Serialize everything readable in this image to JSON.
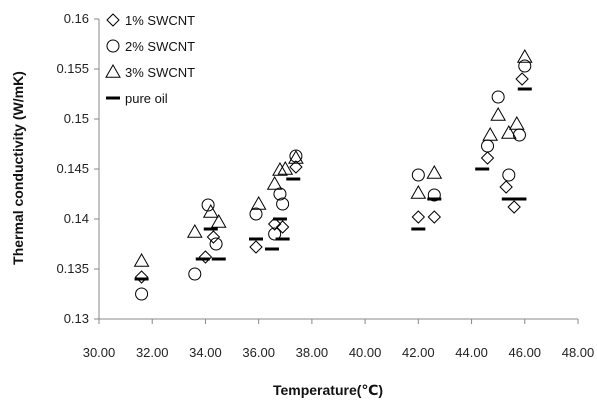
{
  "chart_data": {
    "type": "scatter",
    "title": "",
    "xlabel": "Temperature(℃)",
    "ylabel": "Thermal conductivity  (W/mK)",
    "xlim": [
      30,
      48
    ],
    "ylim": [
      0.13,
      0.16
    ],
    "x_ticks": [
      30,
      32,
      34,
      36,
      38,
      40,
      42,
      44,
      46,
      48
    ],
    "x_tick_labels": [
      "30.00",
      "32.00",
      "34.00",
      "36.00",
      "38.00",
      "40.00",
      "42.00",
      "44.00",
      "46.00",
      "48.00"
    ],
    "y_ticks": [
      0.13,
      0.135,
      0.14,
      0.145,
      0.15,
      0.155,
      0.16
    ],
    "y_tick_labels": [
      "0.13",
      "0.135",
      "0.14",
      "0.145",
      "0.15",
      "0.155",
      "0.16"
    ],
    "grid": false,
    "legend_position": "top-left",
    "series": [
      {
        "name": "1% SWCNT",
        "marker": "diamond",
        "color": "#000000",
        "points": [
          [
            31.6,
            0.1342
          ],
          [
            34.0,
            0.1362
          ],
          [
            34.3,
            0.1382
          ],
          [
            35.9,
            0.1372
          ],
          [
            36.6,
            0.1395
          ],
          [
            36.9,
            0.1392
          ],
          [
            37.4,
            0.1452
          ],
          [
            42.0,
            0.1402
          ],
          [
            42.6,
            0.1402
          ],
          [
            44.6,
            0.1461
          ],
          [
            45.3,
            0.1432
          ],
          [
            45.6,
            0.1412
          ],
          [
            45.9,
            0.154
          ]
        ]
      },
      {
        "name": "2% SWCNT",
        "marker": "circle",
        "color": "#000000",
        "points": [
          [
            31.6,
            0.1325
          ],
          [
            33.6,
            0.1345
          ],
          [
            34.1,
            0.1414
          ],
          [
            34.4,
            0.1375
          ],
          [
            35.9,
            0.1405
          ],
          [
            36.6,
            0.1385
          ],
          [
            36.8,
            0.1425
          ],
          [
            36.9,
            0.1415
          ],
          [
            37.4,
            0.1463
          ],
          [
            42.0,
            0.1444
          ],
          [
            42.6,
            0.1424
          ],
          [
            44.6,
            0.1473
          ],
          [
            45.0,
            0.1522
          ],
          [
            45.4,
            0.1444
          ],
          [
            45.8,
            0.1484
          ],
          [
            46.0,
            0.1553
          ]
        ]
      },
      {
        "name": "3% SWCNT",
        "marker": "triangle",
        "color": "#000000",
        "points": [
          [
            31.6,
            0.1358
          ],
          [
            33.6,
            0.1387
          ],
          [
            34.2,
            0.1407
          ],
          [
            34.5,
            0.1397
          ],
          [
            36.0,
            0.1415
          ],
          [
            36.6,
            0.1435
          ],
          [
            36.8,
            0.1449
          ],
          [
            37.0,
            0.145
          ],
          [
            37.4,
            0.1461
          ],
          [
            42.0,
            0.1426
          ],
          [
            42.6,
            0.1446
          ],
          [
            44.7,
            0.1484
          ],
          [
            45.0,
            0.1504
          ],
          [
            45.4,
            0.1486
          ],
          [
            45.7,
            0.1495
          ],
          [
            46.0,
            0.1562
          ]
        ]
      },
      {
        "name": "pure oil",
        "marker": "dash",
        "color": "#000000",
        "points": [
          [
            31.6,
            0.134
          ],
          [
            33.9,
            0.136
          ],
          [
            34.2,
            0.139
          ],
          [
            34.5,
            0.136
          ],
          [
            35.9,
            0.138
          ],
          [
            36.5,
            0.137
          ],
          [
            36.8,
            0.14
          ],
          [
            36.9,
            0.138
          ],
          [
            37.3,
            0.144
          ],
          [
            42.0,
            0.139
          ],
          [
            42.6,
            0.142
          ],
          [
            44.4,
            0.145
          ],
          [
            45.4,
            0.142
          ],
          [
            45.8,
            0.142
          ],
          [
            46.0,
            0.153
          ]
        ]
      }
    ]
  }
}
